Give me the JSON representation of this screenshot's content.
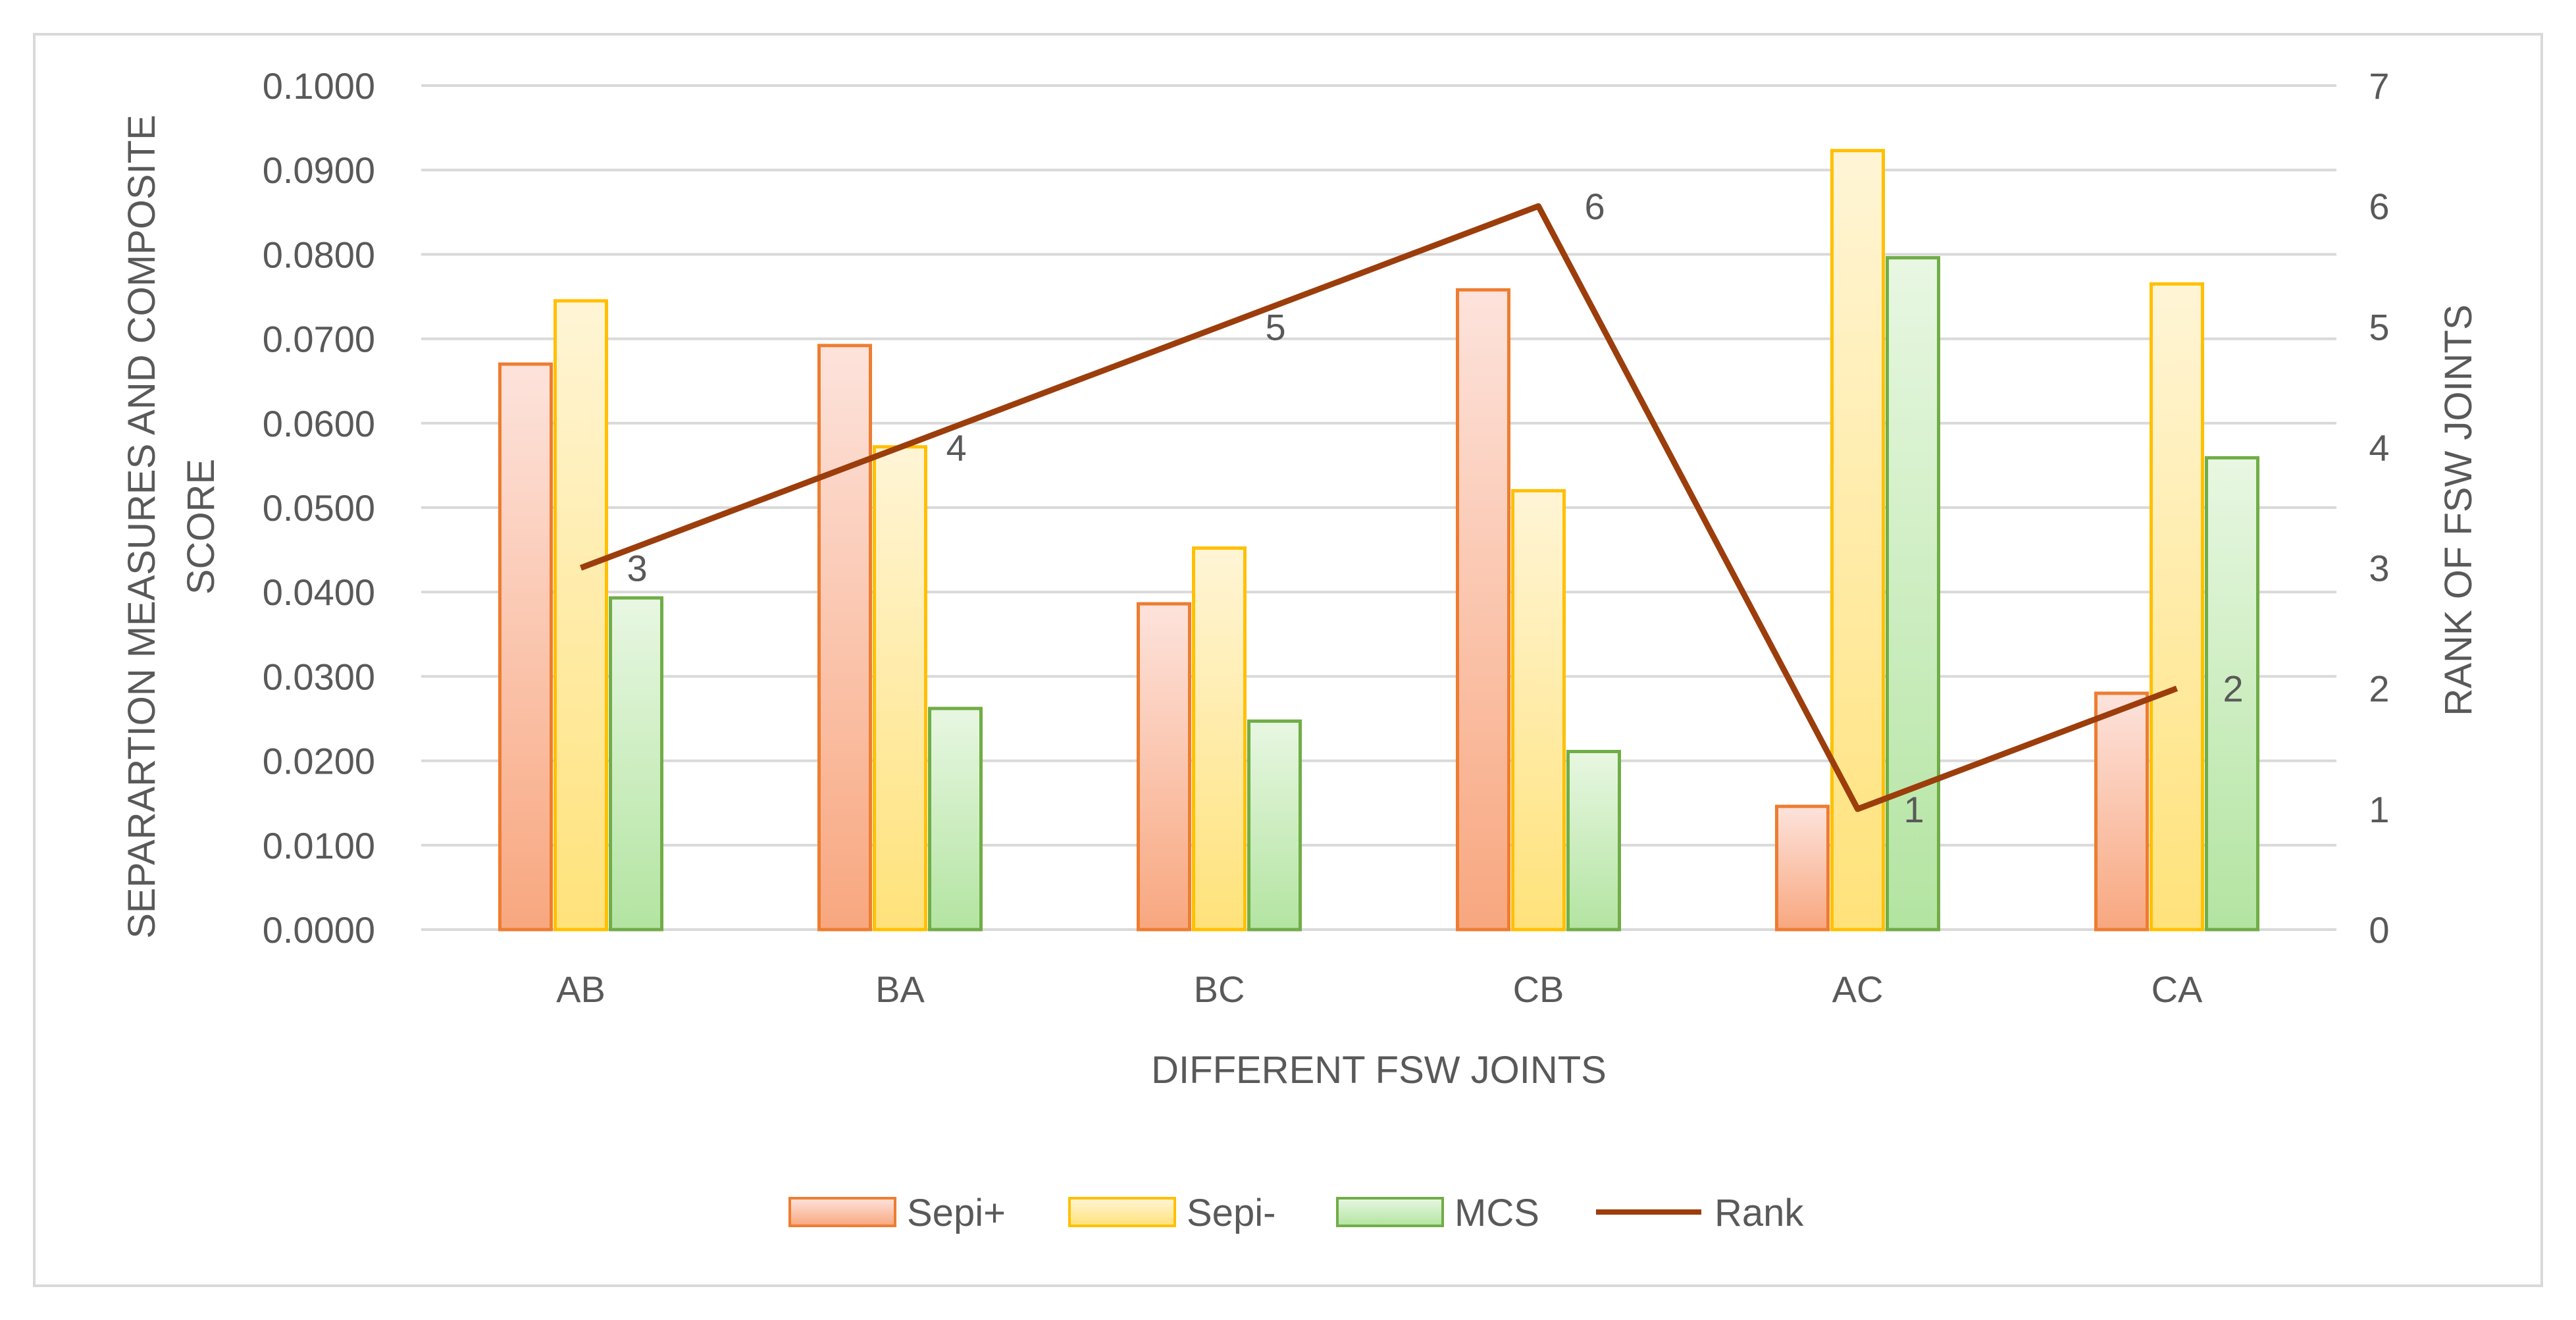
{
  "chart_data": {
    "type": "bar",
    "categories": [
      "AB",
      "BA",
      "BC",
      "CB",
      "AC",
      "CA"
    ],
    "series": [
      {
        "name": "Sepi+",
        "values": [
          0.067,
          0.0692,
          0.0386,
          0.0758,
          0.0146,
          0.028
        ]
      },
      {
        "name": "Sepi-",
        "values": [
          0.0745,
          0.0572,
          0.0452,
          0.052,
          0.0923,
          0.0765
        ]
      },
      {
        "name": "MCS",
        "values": [
          0.0393,
          0.0262,
          0.0247,
          0.0211,
          0.0796,
          0.0559
        ]
      }
    ],
    "line_series": {
      "name": "Rank",
      "values": [
        3,
        4,
        5,
        6,
        1,
        2
      ],
      "axis": "secondary"
    },
    "xlabel": "DIFFERENT FSW JOINTS",
    "ylabel_line1": "SEPARARTION MEASURES AND COMPOSITE",
    "ylabel_line2": "SCORE",
    "y2label": "RANK OF FSW JOINTS",
    "ylim": [
      0,
      0.1
    ],
    "y2lim": [
      0,
      7
    ],
    "y_ticks": [
      "0.0000",
      "0.0100",
      "0.0200",
      "0.0300",
      "0.0400",
      "0.0500",
      "0.0600",
      "0.0700",
      "0.0800",
      "0.0900",
      "0.1000"
    ],
    "y2_ticks": [
      "0",
      "1",
      "2",
      "3",
      "4",
      "5",
      "6",
      "7"
    ],
    "grid": true,
    "legend_position": "bottom",
    "colors": {
      "Sepi+": {
        "fill_top": "#fde3dc",
        "fill_bottom": "#f8a77f",
        "stroke": "#ed7d31"
      },
      "Sepi-": {
        "fill_top": "#fff5d6",
        "fill_bottom": "#ffe27a",
        "stroke": "#ffc000"
      },
      "MCS": {
        "fill_top": "#e8f7e2",
        "fill_bottom": "#b3e4a1",
        "stroke": "#70ad47"
      },
      "Rank": "#9c3d0c"
    }
  }
}
